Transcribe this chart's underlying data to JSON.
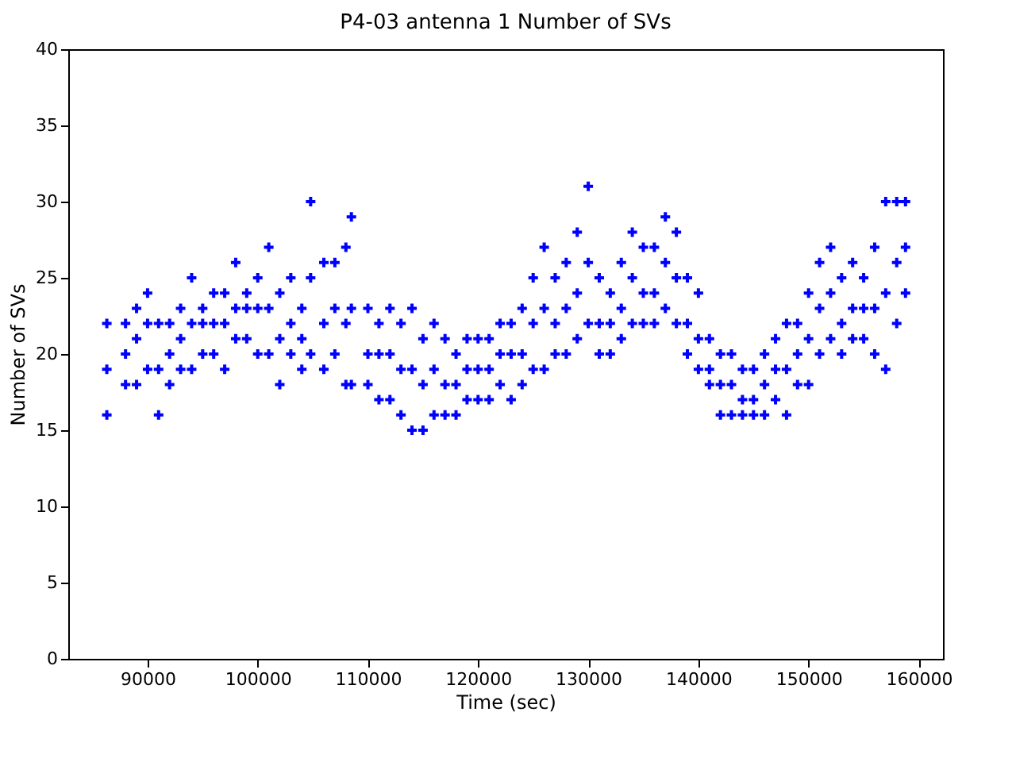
{
  "chart_data": {
    "type": "scatter",
    "title": "P4-03 antenna 1 Number of SVs",
    "xlabel": "Time (sec)",
    "ylabel": "Number of SVs",
    "xlim": [
      82800,
      162200
    ],
    "xticks": [
      90000,
      100000,
      110000,
      120000,
      130000,
      140000,
      150000,
      160000
    ],
    "ylim": [
      0,
      40
    ],
    "yticks": [
      0,
      5,
      10,
      15,
      20,
      25,
      30,
      35,
      40
    ],
    "marker": "cross",
    "grid": false,
    "series": [
      {
        "color": "#0000ff",
        "x": [
          86300,
          86300,
          86300,
          88000,
          88000,
          88000,
          89000,
          89000,
          89000,
          90000,
          90000,
          90000,
          91000,
          91000,
          91000,
          92000,
          92000,
          92000,
          93000,
          93000,
          93000,
          94000,
          94000,
          94000,
          95000,
          95000,
          95000,
          96000,
          96000,
          96000,
          97000,
          97000,
          97000,
          98000,
          98000,
          98000,
          99000,
          99000,
          99000,
          100000,
          100000,
          100000,
          101000,
          101000,
          101000,
          102000,
          102000,
          102000,
          103000,
          103000,
          103000,
          104000,
          104000,
          104000,
          104800,
          104800,
          104800,
          106000,
          106000,
          106000,
          107000,
          107000,
          107000,
          108000,
          108000,
          108000,
          108500,
          108500,
          108500,
          110000,
          110000,
          110000,
          111000,
          111000,
          111000,
          112000,
          112000,
          112000,
          113000,
          113000,
          113000,
          114000,
          114000,
          114000,
          115000,
          115000,
          115000,
          116000,
          116000,
          116000,
          117000,
          117000,
          117000,
          118000,
          118000,
          118000,
          119000,
          119000,
          119000,
          120000,
          120000,
          120000,
          121000,
          121000,
          121000,
          122000,
          122000,
          122000,
          123000,
          123000,
          123000,
          124000,
          124000,
          124000,
          125000,
          125000,
          125000,
          126000,
          126000,
          126000,
          127000,
          127000,
          127000,
          128000,
          128000,
          128000,
          129000,
          129000,
          129000,
          130000,
          130000,
          130000,
          131000,
          131000,
          131000,
          132000,
          132000,
          132000,
          133000,
          133000,
          133000,
          134000,
          134000,
          134000,
          135000,
          135000,
          135000,
          136000,
          136000,
          136000,
          137000,
          137000,
          137000,
          138000,
          138000,
          138000,
          139000,
          139000,
          139000,
          140000,
          140000,
          140000,
          141000,
          141000,
          141000,
          142000,
          142000,
          142000,
          143000,
          143000,
          143000,
          144000,
          144000,
          144000,
          145000,
          145000,
          145000,
          146000,
          146000,
          146000,
          147000,
          147000,
          147000,
          148000,
          148000,
          148000,
          149000,
          149000,
          149000,
          150000,
          150000,
          150000,
          151000,
          151000,
          151000,
          152000,
          152000,
          152000,
          153000,
          153000,
          153000,
          154000,
          154000,
          154000,
          155000,
          155000,
          155000,
          156000,
          156000,
          156000,
          157000,
          157000,
          157000,
          158000,
          158000,
          158000,
          158800,
          158800,
          158800
        ],
        "values": [
          16,
          19,
          22,
          18,
          20,
          22,
          18,
          21,
          23,
          19,
          22,
          24,
          16,
          19,
          22,
          18,
          20,
          22,
          19,
          21,
          23,
          19,
          22,
          25,
          20,
          22,
          23,
          20,
          22,
          24,
          19,
          22,
          24,
          21,
          23,
          26,
          21,
          23,
          24,
          20,
          23,
          25,
          20,
          23,
          27,
          18,
          21,
          24,
          20,
          22,
          25,
          19,
          21,
          23,
          20,
          25,
          30,
          19,
          22,
          26,
          20,
          23,
          26,
          18,
          22,
          27,
          18,
          23,
          29,
          18,
          20,
          23,
          17,
          20,
          22,
          17,
          20,
          23,
          16,
          19,
          22,
          15,
          19,
          23,
          15,
          18,
          21,
          16,
          19,
          22,
          16,
          18,
          21,
          16,
          18,
          20,
          17,
          19,
          21,
          17,
          19,
          21,
          17,
          19,
          21,
          18,
          20,
          22,
          17,
          20,
          22,
          18,
          20,
          23,
          19,
          22,
          25,
          19,
          23,
          27,
          20,
          22,
          25,
          20,
          23,
          26,
          21,
          24,
          28,
          22,
          26,
          31,
          20,
          22,
          25,
          20,
          22,
          24,
          21,
          23,
          26,
          22,
          25,
          28,
          22,
          24,
          27,
          22,
          24,
          27,
          23,
          26,
          29,
          22,
          25,
          28,
          20,
          22,
          25,
          19,
          21,
          24,
          18,
          19,
          21,
          16,
          18,
          20,
          16,
          18,
          20,
          16,
          17,
          19,
          16,
          17,
          19,
          16,
          18,
          20,
          17,
          19,
          21,
          16,
          19,
          22,
          18,
          20,
          22,
          18,
          21,
          24,
          20,
          23,
          26,
          21,
          24,
          27,
          20,
          22,
          25,
          21,
          23,
          26,
          21,
          23,
          25,
          20,
          23,
          27,
          19,
          24,
          30,
          22,
          26,
          30,
          24,
          27,
          30
        ]
      }
    ]
  }
}
